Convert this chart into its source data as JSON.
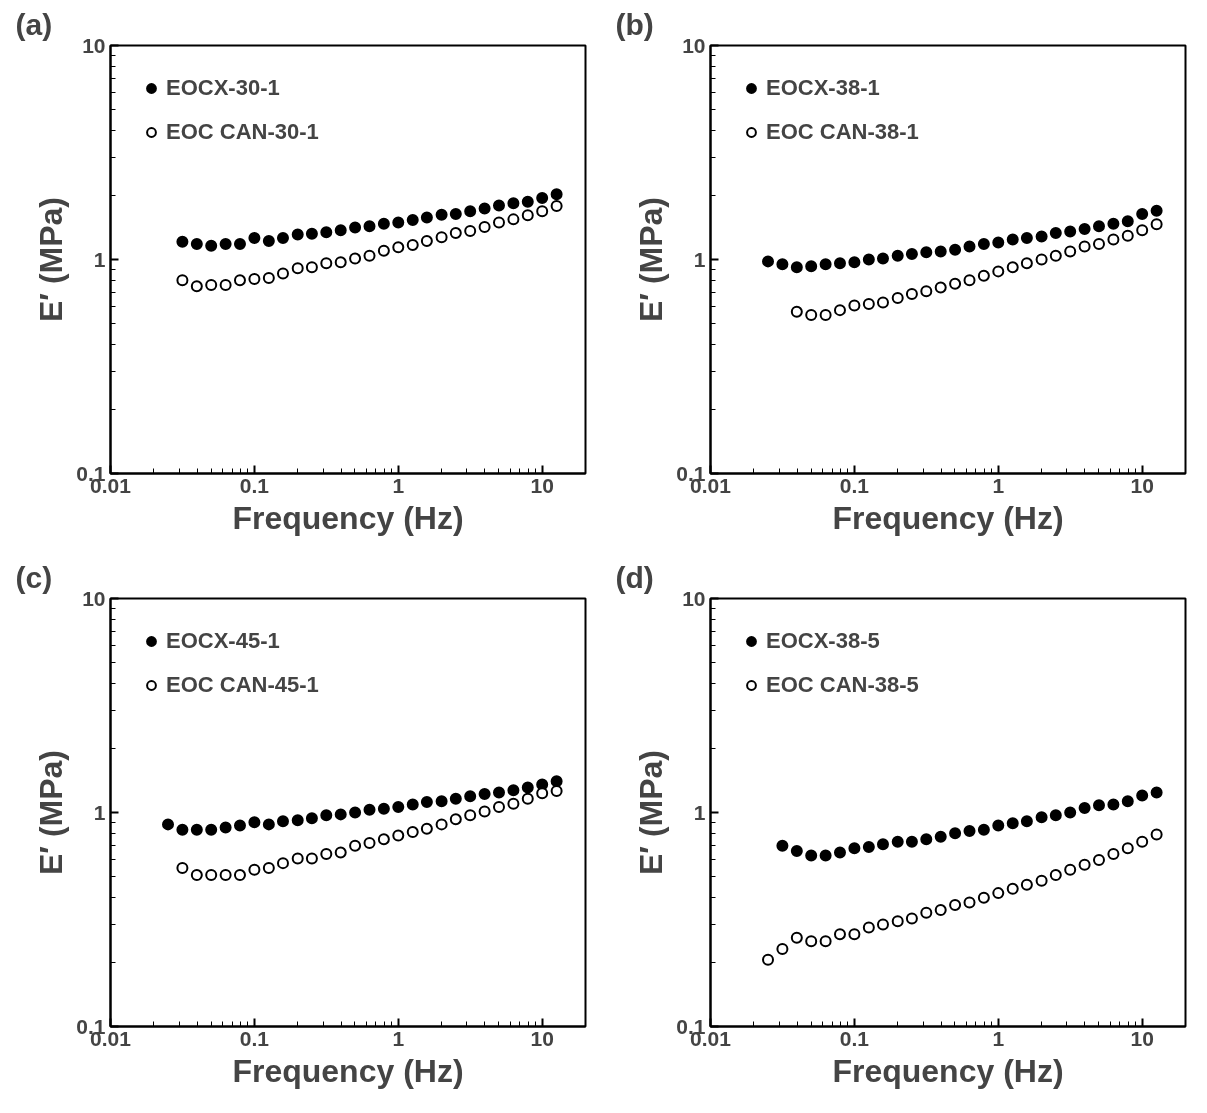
{
  "chart_data": [
    {
      "type": "scatter",
      "title": "(a)",
      "xlabel": "Frequency (Hz)",
      "ylabel": "E′ (MPa)",
      "log": "xy",
      "xlim": [
        0.01,
        20
      ],
      "ylim": [
        0.1,
        10
      ],
      "xticks": [
        0.01,
        0.1,
        1,
        10
      ],
      "yticks": [
        0.1,
        1,
        10
      ],
      "legend": "top left",
      "marker": "circle",
      "grid": false,
      "series": [
        {
          "name": "EOCX-30-1",
          "color": "#000000",
          "x": [
            0.0316,
            0.0398,
            0.0501,
            0.0631,
            0.0794,
            0.1,
            0.126,
            0.158,
            0.2,
            0.251,
            0.316,
            0.398,
            0.501,
            0.631,
            0.794,
            1,
            1.26,
            1.58,
            2,
            2.51,
            3.16,
            3.98,
            5.01,
            6.31,
            7.94,
            10,
            12.6
          ],
          "values": [
            1.21,
            1.18,
            1.16,
            1.18,
            1.18,
            1.26,
            1.22,
            1.26,
            1.31,
            1.32,
            1.34,
            1.37,
            1.41,
            1.43,
            1.47,
            1.49,
            1.53,
            1.57,
            1.62,
            1.63,
            1.68,
            1.73,
            1.79,
            1.83,
            1.86,
            1.94,
            2.02
          ]
        },
        {
          "name": "EOC CAN-30-1",
          "color": "#ffffff",
          "x": [
            0.0316,
            0.0398,
            0.0501,
            0.0631,
            0.0794,
            0.1,
            0.126,
            0.158,
            0.2,
            0.251,
            0.316,
            0.398,
            0.501,
            0.631,
            0.794,
            1,
            1.26,
            1.58,
            2,
            2.51,
            3.16,
            3.98,
            5.01,
            6.31,
            7.94,
            10,
            12.6
          ],
          "values": [
            0.8,
            0.75,
            0.76,
            0.76,
            0.8,
            0.81,
            0.82,
            0.86,
            0.91,
            0.92,
            0.96,
            0.97,
            1.01,
            1.04,
            1.1,
            1.14,
            1.17,
            1.22,
            1.27,
            1.33,
            1.36,
            1.42,
            1.49,
            1.54,
            1.61,
            1.68,
            1.78
          ]
        }
      ]
    },
    {
      "type": "scatter",
      "title": "(b)",
      "xlabel": "Frequency (Hz)",
      "ylabel": "E′ (MPa)",
      "log": "xy",
      "xlim": [
        0.01,
        20
      ],
      "ylim": [
        0.1,
        10
      ],
      "xticks": [
        0.01,
        0.1,
        1,
        10
      ],
      "yticks": [
        0.1,
        1,
        10
      ],
      "legend": "top left",
      "marker": "circle",
      "grid": false,
      "series": [
        {
          "name": "EOCX-38-1",
          "color": "#000000",
          "x": [
            0.0251,
            0.0316,
            0.0398,
            0.0501,
            0.0631,
            0.0794,
            0.1,
            0.126,
            0.158,
            0.2,
            0.251,
            0.316,
            0.398,
            0.501,
            0.631,
            0.794,
            1,
            1.26,
            1.58,
            2,
            2.51,
            3.16,
            3.98,
            5.01,
            6.31,
            7.94,
            10,
            12.6
          ],
          "values": [
            0.98,
            0.95,
            0.92,
            0.93,
            0.95,
            0.96,
            0.97,
            1.0,
            1.01,
            1.04,
            1.06,
            1.08,
            1.09,
            1.11,
            1.15,
            1.18,
            1.2,
            1.24,
            1.26,
            1.28,
            1.33,
            1.35,
            1.39,
            1.43,
            1.47,
            1.51,
            1.63,
            1.69
          ]
        },
        {
          "name": "EOC CAN-38-1",
          "color": "#ffffff",
          "x": [
            0.0398,
            0.0501,
            0.0631,
            0.0794,
            0.1,
            0.126,
            0.158,
            0.2,
            0.251,
            0.316,
            0.398,
            0.501,
            0.631,
            0.794,
            1,
            1.26,
            1.58,
            2,
            2.51,
            3.16,
            3.98,
            5.01,
            6.31,
            7.94,
            10,
            12.6
          ],
          "values": [
            0.57,
            0.55,
            0.55,
            0.58,
            0.61,
            0.62,
            0.63,
            0.66,
            0.69,
            0.71,
            0.74,
            0.77,
            0.8,
            0.84,
            0.88,
            0.92,
            0.96,
            1.0,
            1.04,
            1.09,
            1.15,
            1.18,
            1.24,
            1.29,
            1.37,
            1.46
          ]
        }
      ]
    },
    {
      "type": "scatter",
      "title": "(c)",
      "xlabel": "Frequency (Hz)",
      "ylabel": "E′ (MPa)",
      "log": "xy",
      "xlim": [
        0.01,
        20
      ],
      "ylim": [
        0.1,
        10
      ],
      "xticks": [
        0.01,
        0.1,
        1,
        10
      ],
      "yticks": [
        0.1,
        1,
        10
      ],
      "legend": "top left",
      "marker": "circle",
      "grid": false,
      "series": [
        {
          "name": "EOCX-45-1",
          "color": "#000000",
          "x": [
            0.0251,
            0.0316,
            0.0398,
            0.0501,
            0.0631,
            0.0794,
            0.1,
            0.126,
            0.158,
            0.2,
            0.251,
            0.316,
            0.398,
            0.501,
            0.631,
            0.794,
            1,
            1.26,
            1.58,
            2,
            2.51,
            3.16,
            3.98,
            5.01,
            6.31,
            7.94,
            10,
            12.6
          ],
          "values": [
            0.88,
            0.83,
            0.83,
            0.83,
            0.85,
            0.87,
            0.9,
            0.88,
            0.91,
            0.92,
            0.94,
            0.97,
            0.98,
            1.0,
            1.03,
            1.04,
            1.06,
            1.09,
            1.12,
            1.13,
            1.16,
            1.19,
            1.22,
            1.24,
            1.27,
            1.31,
            1.35,
            1.4
          ]
        },
        {
          "name": "EOC CAN-45-1",
          "color": "#ffffff",
          "x": [
            0.0316,
            0.0398,
            0.0501,
            0.0631,
            0.0794,
            0.1,
            0.126,
            0.158,
            0.2,
            0.251,
            0.316,
            0.398,
            0.501,
            0.631,
            0.794,
            1,
            1.26,
            1.58,
            2,
            2.51,
            3.16,
            3.98,
            5.01,
            6.31,
            7.94,
            10,
            12.6
          ],
          "values": [
            0.55,
            0.51,
            0.51,
            0.51,
            0.51,
            0.54,
            0.55,
            0.58,
            0.61,
            0.61,
            0.64,
            0.65,
            0.7,
            0.72,
            0.75,
            0.78,
            0.81,
            0.84,
            0.88,
            0.93,
            0.97,
            1.01,
            1.06,
            1.1,
            1.16,
            1.23,
            1.26
          ]
        }
      ]
    },
    {
      "type": "scatter",
      "title": "(d)",
      "xlabel": "Frequency (Hz)",
      "ylabel": "E′ (MPa)",
      "log": "xy",
      "xlim": [
        0.01,
        20
      ],
      "ylim": [
        0.1,
        10
      ],
      "xticks": [
        0.01,
        0.1,
        1,
        10
      ],
      "yticks": [
        0.1,
        1,
        10
      ],
      "legend": "top left",
      "marker": "circle",
      "grid": false,
      "series": [
        {
          "name": "EOCX-38-5",
          "color": "#000000",
          "x": [
            0.0316,
            0.0398,
            0.0501,
            0.0631,
            0.0794,
            0.1,
            0.126,
            0.158,
            0.2,
            0.251,
            0.316,
            0.398,
            0.501,
            0.631,
            0.794,
            1,
            1.26,
            1.58,
            2,
            2.51,
            3.16,
            3.98,
            5.01,
            6.31,
            7.94,
            10,
            12.6
          ],
          "values": [
            0.7,
            0.66,
            0.63,
            0.63,
            0.65,
            0.68,
            0.69,
            0.71,
            0.73,
            0.73,
            0.75,
            0.77,
            0.8,
            0.82,
            0.83,
            0.87,
            0.89,
            0.91,
            0.95,
            0.97,
            1.0,
            1.05,
            1.08,
            1.09,
            1.13,
            1.2,
            1.24
          ]
        },
        {
          "name": "EOC CAN-38-5",
          "color": "#ffffff",
          "x": [
            0.0251,
            0.0316,
            0.0398,
            0.0501,
            0.0631,
            0.0794,
            0.1,
            0.126,
            0.158,
            0.2,
            0.251,
            0.316,
            0.398,
            0.501,
            0.631,
            0.794,
            1,
            1.26,
            1.58,
            2,
            2.51,
            3.16,
            3.98,
            5.01,
            6.31,
            7.94,
            10,
            12.6
          ],
          "values": [
            0.205,
            0.23,
            0.26,
            0.25,
            0.25,
            0.27,
            0.27,
            0.29,
            0.3,
            0.31,
            0.32,
            0.34,
            0.35,
            0.37,
            0.38,
            0.4,
            0.42,
            0.44,
            0.46,
            0.48,
            0.51,
            0.54,
            0.57,
            0.6,
            0.64,
            0.68,
            0.73,
            0.79
          ]
        }
      ]
    }
  ]
}
